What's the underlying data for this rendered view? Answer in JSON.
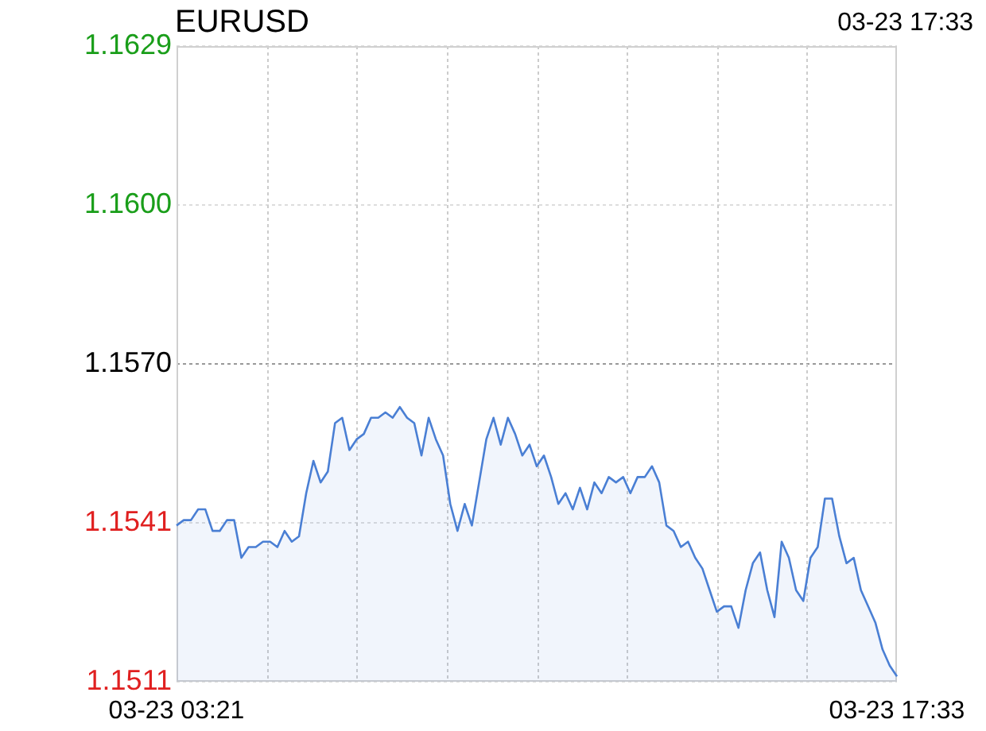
{
  "chart_data": {
    "type": "area",
    "title": "EURUSD",
    "annotations": [
      "03-23 17:33"
    ],
    "categories": [
      "03-23 03:21",
      null,
      null,
      null,
      null,
      null,
      null,
      null,
      null,
      null,
      null,
      null,
      null,
      null,
      null,
      null,
      null,
      null,
      null,
      null,
      null,
      null,
      null,
      null,
      null,
      null,
      null,
      null,
      null,
      null,
      null,
      null,
      null,
      null,
      null,
      null,
      null,
      null,
      null,
      null,
      null,
      null,
      null,
      null,
      null,
      null,
      null,
      null,
      null,
      null,
      null,
      null,
      null,
      null,
      null,
      null,
      null,
      null,
      null,
      null,
      null,
      null,
      null,
      null,
      null,
      null,
      null,
      null,
      null,
      null,
      null,
      null,
      null,
      null,
      null,
      null,
      null,
      null,
      null,
      null,
      null,
      null,
      null,
      null,
      null,
      null,
      null,
      null,
      null,
      null,
      null,
      null,
      null,
      null,
      null,
      null,
      null,
      null,
      null,
      null,
      "03-23 17:33"
    ],
    "series": [
      {
        "color": "#4a7fd4",
        "values": [
          1.154,
          1.1541,
          1.1541,
          1.1543,
          1.1543,
          1.1539,
          1.1539,
          1.1541,
          1.1541,
          1.1534,
          1.1536,
          1.1536,
          1.1537,
          1.1537,
          1.1536,
          1.1539,
          1.1537,
          1.1538,
          1.1546,
          1.1552,
          1.1548,
          1.155,
          1.1559,
          1.156,
          1.1554,
          1.1556,
          1.1557,
          1.156,
          1.156,
          1.1561,
          1.156,
          1.1562,
          1.156,
          1.1559,
          1.1553,
          1.156,
          1.1556,
          1.1553,
          1.1544,
          1.1539,
          1.1544,
          1.154,
          1.1548,
          1.1556,
          1.156,
          1.1555,
          1.156,
          1.1557,
          1.1553,
          1.1555,
          1.1551,
          1.1553,
          1.1549,
          1.1544,
          1.1546,
          1.1543,
          1.1547,
          1.1543,
          1.1548,
          1.1546,
          1.1549,
          1.1548,
          1.1549,
          1.1546,
          1.1549,
          1.1549,
          1.1551,
          1.1548,
          1.154,
          1.1539,
          1.1536,
          1.1537,
          1.1534,
          1.1532,
          1.1528,
          1.1524,
          1.1525,
          1.1525,
          1.1521,
          1.1528,
          1.1533,
          1.1535,
          1.1528,
          1.1523,
          1.1537,
          1.1534,
          1.1528,
          1.1526,
          1.1534,
          1.1536,
          1.1545,
          1.1545,
          1.1538,
          1.1533,
          1.1534,
          1.1528,
          1.1525,
          1.1522,
          1.1517,
          1.1514,
          1.1512
        ]
      }
    ],
    "ylim": [
      1.1511,
      1.1629
    ],
    "yticks": [
      {
        "value": 1.1511,
        "label": "1.1511"
      },
      {
        "value": 1.15405,
        "label": "1.1541"
      },
      {
        "value": 1.157,
        "label": "1.1570"
      },
      {
        "value": 1.15995,
        "label": "1.1600"
      },
      {
        "value": 1.1629,
        "label": "1.1629"
      }
    ],
    "ref_lines": [
      {
        "axis": "y",
        "value": 1.157,
        "color": "#999999",
        "line_style": "dotted"
      }
    ],
    "grid": true,
    "legend": false,
    "marker": "none",
    "line_style": "solid"
  }
}
